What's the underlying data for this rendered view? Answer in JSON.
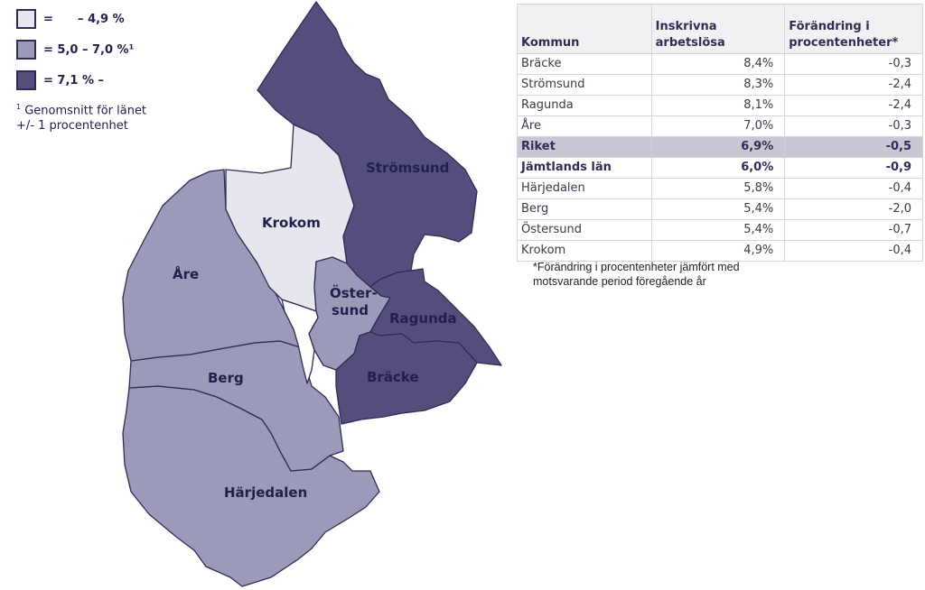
{
  "legend": {
    "items": [
      {
        "label": "=      – 4,9 %",
        "color": "#e6e6ee"
      },
      {
        "label": "= 5,0 – 7,0 %¹",
        "color": "#9b9ab8"
      },
      {
        "label": "= 7,1 % –",
        "color": "#534e7c"
      }
    ],
    "note_marker": "1",
    "note_line1": "Genomsnitt för länet",
    "note_line2": "+/- 1 procentenhet"
  },
  "map": {
    "colors": {
      "low": "#e6e6ee",
      "mid": "#9b9ab8",
      "high": "#534e7c",
      "border": "#2f2b55"
    },
    "regions": [
      {
        "name": "Strömsund",
        "class": "high"
      },
      {
        "name": "Krokom",
        "class": "low"
      },
      {
        "name": "Åre",
        "class": "mid"
      },
      {
        "name": "Öster-",
        "class": "mid"
      },
      {
        "name": "sund",
        "class": "mid"
      },
      {
        "name": "Ragunda",
        "class": "high"
      },
      {
        "name": "Berg",
        "class": "mid"
      },
      {
        "name": "Bräcke",
        "class": "high"
      },
      {
        "name": "Härjedalen",
        "class": "mid"
      }
    ]
  },
  "table": {
    "headers": [
      "Kommun",
      "Inskrivna arbetslösa",
      "Förändring i procentenheter*"
    ],
    "header_lines": {
      "col2_line1": "Inskrivna",
      "col2_line2": "arbetslösa",
      "col3_line1": "Förändring i",
      "col3_line2": "procentenheter*"
    },
    "rows": [
      {
        "kommun": "Bräcke",
        "arbetslosa": "8,4%",
        "forandring": "-0,3",
        "style": ""
      },
      {
        "kommun": "Strömsund",
        "arbetslosa": "8,3%",
        "forandring": "-2,4",
        "style": ""
      },
      {
        "kommun": "Ragunda",
        "arbetslosa": "8,1%",
        "forandring": "-2,4",
        "style": ""
      },
      {
        "kommun": "Åre",
        "arbetslosa": "7,0%",
        "forandring": "-0,3",
        "style": ""
      },
      {
        "kommun": "Riket",
        "arbetslosa": "6,9%",
        "forandring": "-0,5",
        "style": "hl"
      },
      {
        "kommun": "Jämtlands län",
        "arbetslosa": "6,0%",
        "forandring": "-0,9",
        "style": "bold"
      },
      {
        "kommun": "Härjedalen",
        "arbetslosa": "5,8%",
        "forandring": "-0,4",
        "style": ""
      },
      {
        "kommun": "Berg",
        "arbetslosa": "5,4%",
        "forandring": "-2,0",
        "style": ""
      },
      {
        "kommun": "Östersund",
        "arbetslosa": "5,4%",
        "forandring": "-0,7",
        "style": ""
      },
      {
        "kommun": "Krokom",
        "arbetslosa": "4,9%",
        "forandring": "-0,4",
        "style": ""
      }
    ],
    "footnote_line1": "*Förändring i procentenheter jämfört med",
    "footnote_line2": "motsvarande period föregående år"
  }
}
